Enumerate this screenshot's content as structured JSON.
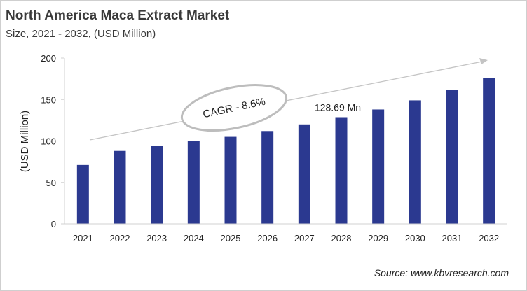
{
  "header": {
    "title": "North America Maca Extract Market",
    "subtitle": "Size, 2021 - 2032, (USD Million)"
  },
  "footer": {
    "source": "Source: www.kbvresearch.com"
  },
  "chart_data": {
    "type": "bar",
    "title": "North America Maca Extract Market",
    "subtitle": "Size, 2021 - 2032, (USD Million)",
    "xlabel": "",
    "ylabel": "(USD Million)",
    "ylim": [
      0,
      200
    ],
    "yticks": [
      0,
      50,
      100,
      150,
      200
    ],
    "grid": false,
    "bar_color": "#2b3990",
    "categories": [
      "2021",
      "2022",
      "2023",
      "2024",
      "2025",
      "2026",
      "2027",
      "2028",
      "2029",
      "2030",
      "2031",
      "2032"
    ],
    "values": [
      71,
      88,
      94.5,
      100,
      105,
      112,
      120,
      128.69,
      138,
      149,
      162,
      176
    ],
    "annotations": [
      {
        "text": "128.69 Mn",
        "category": "2028"
      },
      {
        "text": "CAGR - 8.6%"
      }
    ]
  }
}
